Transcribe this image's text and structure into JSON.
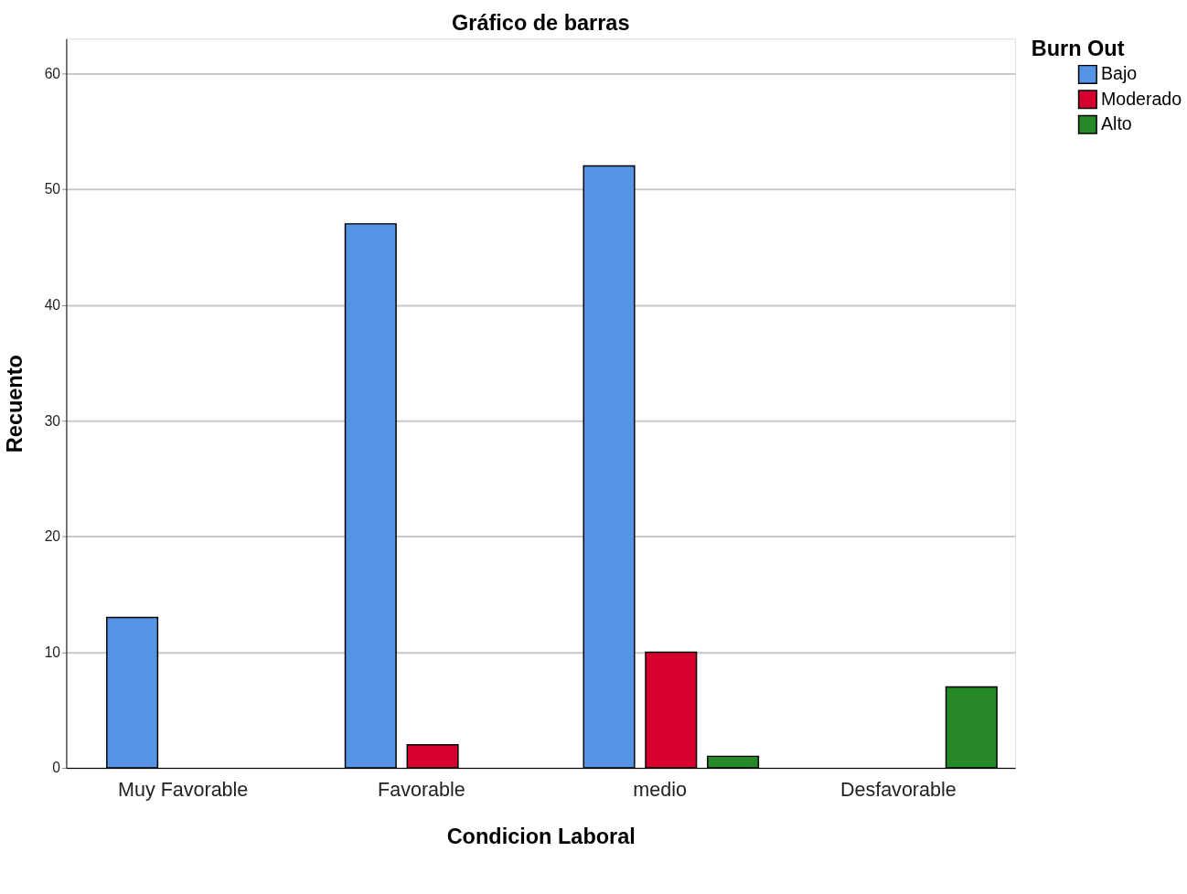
{
  "chart_data": {
    "type": "bar",
    "title": "Gráfico de barras",
    "xlabel": "Condicion Laboral",
    "ylabel": "Recuento",
    "legend_title": "Burn Out",
    "categories": [
      "Muy Favorable",
      "Favorable",
      "medio",
      "Desfavorable"
    ],
    "series": [
      {
        "name": "Bajo",
        "color": "#5594e4",
        "values": [
          13,
          47,
          52,
          null
        ]
      },
      {
        "name": "Moderado",
        "color": "#d6002e",
        "values": [
          null,
          2,
          10,
          null
        ]
      },
      {
        "name": "Alto",
        "color": "#268826",
        "values": [
          null,
          null,
          1,
          7
        ]
      }
    ],
    "ylim": [
      0,
      63
    ],
    "yticks": [
      0,
      10,
      20,
      30,
      40,
      50,
      60
    ],
    "grid": "y",
    "legend": "top right"
  }
}
